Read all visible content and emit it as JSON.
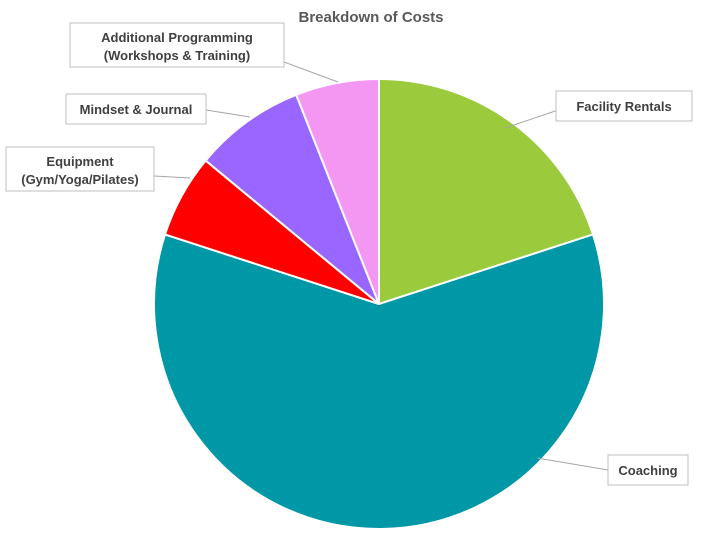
{
  "chart_data": {
    "type": "pie",
    "title": "Breakdown of Costs",
    "start_angle_deg": 0,
    "direction": "clockwise",
    "slices": [
      {
        "label": "Facility Rentals",
        "lines": [
          "Facility Rentals"
        ],
        "value": 20,
        "color": "#9BCB3C"
      },
      {
        "label": "Coaching",
        "lines": [
          "Coaching"
        ],
        "value": 60,
        "color": "#0097A7"
      },
      {
        "label": "Equipment (Gym/Yoga/Pilates)",
        "lines": [
          "Equipment",
          "(Gym/Yoga/Pilates)"
        ],
        "value": 6,
        "color": "#FF0000"
      },
      {
        "label": "Mindset & Journal",
        "lines": [
          "Mindset & Journal"
        ],
        "value": 8,
        "color": "#9966FF"
      },
      {
        "label": "Additional Programming (Workshops & Training)",
        "lines": [
          "Additional Programming",
          "(Workshops & Training)"
        ],
        "value": 6,
        "color": "#F497F2"
      }
    ],
    "legend": "none (callout labels)"
  }
}
